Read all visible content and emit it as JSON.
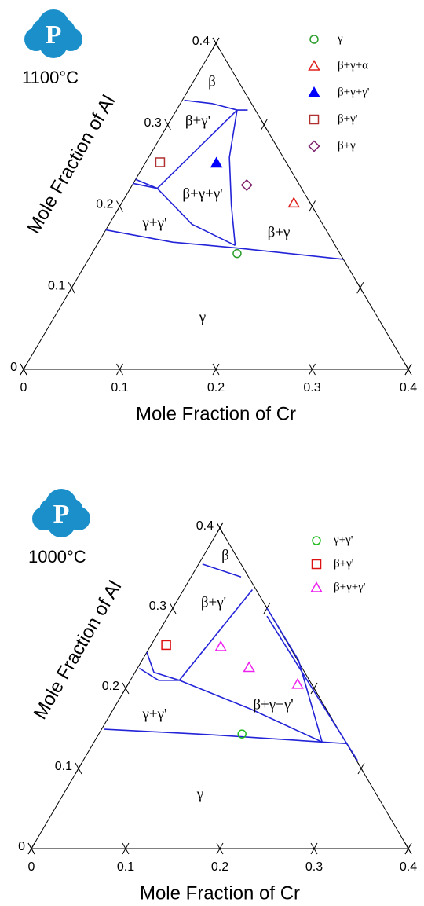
{
  "chart_data": [
    {
      "type": "ternary",
      "temperature": "1100°C",
      "logo_text": "P",
      "xlabel": "Mole Fraction of Cr",
      "ylabel": "Mole Fraction of Al",
      "xlim": [
        0,
        0.4
      ],
      "ylim": [
        0,
        0.4
      ],
      "xticks": [
        0,
        0.1,
        0.2,
        0.3,
        0.4
      ],
      "yticks": [
        0,
        0.1,
        0.2,
        0.3,
        0.4
      ],
      "boundary_color": "#2323d8",
      "annotations": [
        "β",
        "β+γ'",
        "β+γ+γ'",
        "γ+γ'",
        "β+γ",
        "γ"
      ],
      "series": [
        {
          "name": "γ",
          "color": "#2a9d2a",
          "marker": "circle",
          "x": [
            0.151
          ],
          "y": [
            0.142
          ]
        },
        {
          "name": "β+γ+α",
          "color": "#e0201e",
          "marker": "triangle",
          "x": [
            0.179
          ],
          "y": [
            0.204
          ]
        },
        {
          "name": "β+γ+γ'",
          "color": "#0000ff",
          "marker": "triangle-filled",
          "x": [
            0.074
          ],
          "y": [
            0.253
          ]
        },
        {
          "name": "β+γ'",
          "color": "#b03030",
          "marker": "square",
          "x": [
            0.015
          ],
          "y": [
            0.254
          ]
        },
        {
          "name": "β+γ",
          "color": "#7b1f6b",
          "marker": "diamond",
          "x": [
            0.119
          ],
          "y": [
            0.226
          ]
        }
      ],
      "lines": [
        {
          "x": [
            0.002,
            0.033,
            0.063,
            0.074
          ],
          "y": [
            0.33,
            0.326,
            0.318,
            0.318
          ]
        },
        {
          "x": [
            0.063,
            0.084,
            0.115,
            0.144
          ],
          "y": [
            0.318,
            0.26,
            0.202,
            0.152
          ]
        },
        {
          "x": [
            0.063,
            0.028
          ],
          "y": [
            0.318,
            0.222
          ]
        },
        {
          "x": [
            0,
            0.028
          ],
          "y": [
            0.233,
            0.222
          ]
        },
        {
          "x": [
            0,
            0.028
          ],
          "y": [
            0.228,
            0.222
          ]
        },
        {
          "x": [
            0.028,
            0.086,
            0.144
          ],
          "y": [
            0.222,
            0.178,
            0.152
          ]
        },
        {
          "x": [
            0,
            0.077,
            0.146,
            0.265
          ],
          "y": [
            0.171,
            0.156,
            0.149,
            0.135
          ]
        }
      ]
    },
    {
      "type": "ternary",
      "temperature": "1000°C",
      "logo_text": "P",
      "xlabel": "Mole Fraction of Cr",
      "ylabel": "Mole Fraction of Al",
      "xlim": [
        0,
        0.4
      ],
      "ylim": [
        0,
        0.4
      ],
      "xticks": [
        0,
        0.1,
        0.2,
        0.3,
        0.4
      ],
      "yticks": [
        0,
        0.1,
        0.2,
        0.3,
        0.4
      ],
      "boundary_color": "#2323d8",
      "annotations": [
        "β",
        "β+γ'",
        "β+γ+γ'",
        "γ+γ'",
        "γ"
      ],
      "series": [
        {
          "name": "γ+γ'",
          "color": "#22bb22",
          "marker": "circle",
          "x": [
            0.152
          ],
          "y": [
            0.143
          ]
        },
        {
          "name": "β+γ'",
          "color": "#dd1111",
          "marker": "square",
          "x": [
            0.016
          ],
          "y": [
            0.254
          ]
        },
        {
          "name": "β+γ+γ'",
          "color": "#ee22ee",
          "marker": "triangle",
          "x": [
            0.075,
            0.118,
            0.18
          ],
          "y": [
            0.252,
            0.226,
            0.205
          ]
        }
      ],
      "lines": [
        {
          "x": [
            0.004,
            0.053
          ],
          "y": [
            0.355,
            0.339
          ]
        },
        {
          "x": [
            0.073,
            0.052
          ],
          "y": [
            0.323,
            0.21
          ]
        },
        {
          "x": [
            0,
            0.02,
            0.052
          ],
          "y": [
            0.245,
            0.22,
            0.21
          ]
        },
        {
          "x": [
            0.002,
            0.03,
            0.052
          ],
          "y": [
            0.225,
            0.21,
            0.21
          ]
        },
        {
          "x": [
            0.052,
            0.146,
            0.242
          ],
          "y": [
            0.21,
            0.174,
            0.133
          ]
        },
        {
          "x": [
            0.003,
            0.121,
            0.242,
            0.27
          ],
          "y": [
            0.149,
            0.142,
            0.133,
            0.131
          ]
        },
        {
          "x": [
            0.1,
            0.166,
            0.242
          ],
          "y": [
            0.3,
            0.235,
            0.133
          ]
        },
        {
          "x": [
            0.105,
            0.291
          ],
          "y": [
            0.29,
            0.11
          ]
        }
      ]
    }
  ]
}
